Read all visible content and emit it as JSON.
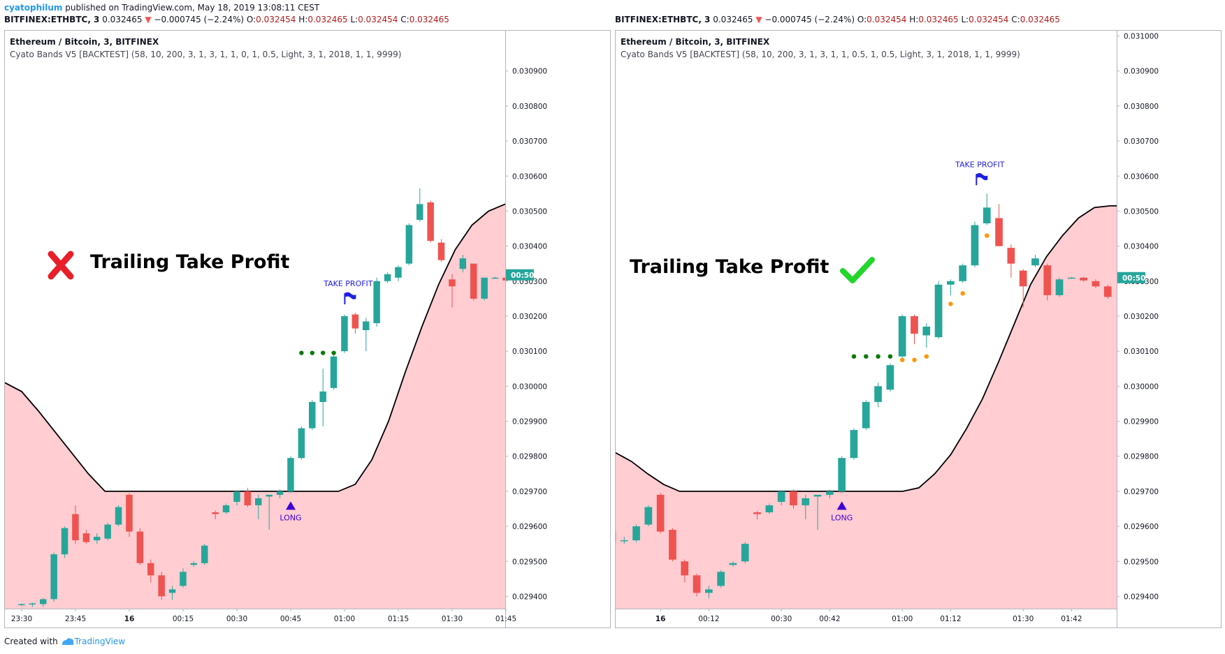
{
  "header": {
    "author": "cyatophilum",
    "published_text": "published on TradingView.com, May 18, 2019 13:08:11 CEST"
  },
  "symbol_line": {
    "symbol": "BITFINEX:ETHBTC, 3",
    "price": "0.032465",
    "change_arrow": "▼",
    "change": "−0.000745 (−2.24%)",
    "o_label": "O:",
    "o": "0.032454",
    "h_label": "H:",
    "h": "0.032465",
    "l_label": "L:",
    "l": "0.032454",
    "c_label": "C:",
    "c": "0.032465"
  },
  "footer": {
    "created_with": "Created with",
    "brand": "TradingView"
  },
  "colors": {
    "up": "#26a69a",
    "down": "#ef5350",
    "band_fill": "#ffcdd2",
    "band_line": "#000000",
    "long_marker": "#3f00d6",
    "take_profit": "#1e1ee6",
    "entry_dots": "#0a7a0a",
    "trail_dots": "#ff9800",
    "cross_icon": "#e8202a",
    "check_icon": "#22d62a"
  },
  "chart_data": [
    {
      "type": "candlestick",
      "title": "Ethereum / Bitcoin, 3, BITFINEX",
      "indicator": "Cyato Bands V5 [BACKTEST] (58, 10, 200, 3, 1, 3, 1, 1, 0, 1, 0.5, Light, 3, 1, 2018, 1, 1, 9999)",
      "annotation": "Trailing Take Profit",
      "annotation_icon": "cross-icon",
      "ylim": [
        0.029365,
        0.031015
      ],
      "yticks": [
        "0.029400",
        "0.029500",
        "0.029600",
        "0.029700",
        "0.029800",
        "0.029900",
        "0.030000",
        "0.030100",
        "0.030200",
        "0.030300",
        "0.030400",
        "0.030500",
        "0.030600",
        "0.030700",
        "0.030800",
        "0.030900"
      ],
      "xticks": [
        "23:30",
        "23:45",
        "16",
        "00:15",
        "00:30",
        "00:45",
        "01:00",
        "01:15",
        "01:30",
        "01:45"
      ],
      "xtick_idx": [
        0,
        5,
        10,
        15,
        20,
        25,
        30,
        35,
        40,
        45
      ],
      "countdown": "00:50",
      "countdown_price": 0.030318,
      "candles": [
        [
          0.029375,
          0.02938,
          0.029372,
          0.029378
        ],
        [
          0.029377,
          0.029382,
          0.02937,
          0.02938
        ],
        [
          0.029378,
          0.029395,
          0.02937,
          0.029392
        ],
        [
          0.029392,
          0.029525,
          0.029385,
          0.02952
        ],
        [
          0.02952,
          0.0296,
          0.02951,
          0.029595
        ],
        [
          0.029635,
          0.02966,
          0.02955,
          0.02956
        ],
        [
          0.02958,
          0.02959,
          0.02955,
          0.029555
        ],
        [
          0.02956,
          0.02958,
          0.02955,
          0.02957
        ],
        [
          0.029565,
          0.02961,
          0.02956,
          0.029605
        ],
        [
          0.029605,
          0.02966,
          0.0296,
          0.029655
        ],
        [
          0.02969,
          0.029695,
          0.02957,
          0.029585
        ],
        [
          0.029585,
          0.029595,
          0.02949,
          0.029495
        ],
        [
          0.029495,
          0.029505,
          0.02944,
          0.02946
        ],
        [
          0.02946,
          0.02947,
          0.02939,
          0.0294
        ],
        [
          0.02941,
          0.02943,
          0.02939,
          0.02942
        ],
        [
          0.02943,
          0.02948,
          0.029425,
          0.02947
        ],
        [
          0.02949,
          0.0295,
          0.029485,
          0.029495
        ],
        [
          0.029495,
          0.02955,
          0.02949,
          0.029545
        ],
        [
          0.02964,
          0.029645,
          0.02962,
          0.029635
        ],
        [
          0.02964,
          0.029665,
          0.029635,
          0.02966
        ],
        [
          0.02967,
          0.0297,
          0.02966,
          0.0297
        ],
        [
          0.0297,
          0.02971,
          0.029655,
          0.02966
        ],
        [
          0.02966,
          0.02969,
          0.02962,
          0.02968
        ],
        [
          0.029685,
          0.02969,
          0.02959,
          0.02969
        ],
        [
          0.02969,
          0.029705,
          0.02968,
          0.0297
        ],
        [
          0.0297,
          0.0298,
          0.029695,
          0.029795
        ],
        [
          0.029795,
          0.029885,
          0.02979,
          0.02988
        ],
        [
          0.02988,
          0.02996,
          0.029875,
          0.029955
        ],
        [
          0.029955,
          0.03005,
          0.029885,
          0.029985
        ],
        [
          0.029995,
          0.03009,
          0.02999,
          0.030085
        ],
        [
          0.0301,
          0.030205,
          0.030095,
          0.0302
        ],
        [
          0.030205,
          0.03021,
          0.03015,
          0.030165
        ],
        [
          0.03016,
          0.030195,
          0.0301,
          0.030185
        ],
        [
          0.03018,
          0.03031,
          0.03017,
          0.0303
        ],
        [
          0.0303,
          0.030325,
          0.030295,
          0.03032
        ],
        [
          0.03031,
          0.030345,
          0.0303,
          0.03034
        ],
        [
          0.03035,
          0.030465,
          0.030345,
          0.03046
        ],
        [
          0.030475,
          0.030565,
          0.03047,
          0.03052
        ],
        [
          0.030525,
          0.03053,
          0.03041,
          0.030415
        ],
        [
          0.03041,
          0.03042,
          0.030355,
          0.03036
        ],
        [
          0.030305,
          0.03032,
          0.030225,
          0.030285
        ],
        [
          0.030335,
          0.030375,
          0.030325,
          0.030365
        ],
        [
          0.03035,
          0.03035,
          0.030245,
          0.03025
        ],
        [
          0.03025,
          0.03031,
          0.030245,
          0.03031
        ],
        [
          0.03031,
          0.030312,
          0.030308,
          0.03031
        ],
        [
          0.03031,
          0.030312,
          0.0303,
          0.030302
        ],
        [
          0.0303,
          0.030305,
          0.030285,
          0.030288
        ],
        [
          0.030285,
          0.03029,
          0.03025,
          0.03025
        ],
        [
          0.03025,
          0.030415,
          0.03022,
          0.030325
        ]
      ],
      "band": [
        0.03001,
        0.029985,
        0.02993,
        0.02987,
        0.02981,
        0.02975,
        0.0297,
        0.0297,
        0.0297,
        0.0297,
        0.0297,
        0.0297,
        0.0297,
        0.0297,
        0.0297,
        0.0297,
        0.0297,
        0.0297,
        0.0297,
        0.0297,
        0.0297,
        0.02972,
        0.02979,
        0.0299,
        0.03004,
        0.03017,
        0.03029,
        0.03039,
        0.03046,
        0.0305,
        0.03052,
        0.03052
      ],
      "band_first_idx": 0,
      "band_step": 1.55,
      "long_idx": 25,
      "long_label": "LONG",
      "take_profit_idx": 31,
      "take_profit_label": "TAKE PROFIT",
      "green_dots": [
        [
          26,
          0.030095
        ],
        [
          27,
          0.030095
        ],
        [
          28,
          0.030095
        ],
        [
          29,
          0.030095
        ]
      ],
      "orange_dots": []
    },
    {
      "type": "candlestick",
      "title": "Ethereum / Bitcoin, 3, BITFINEX",
      "indicator": "Cyato Bands V5 [BACKTEST] (58, 10, 200, 3, 1, 3, 1, 1, 0.5, 1, 0.5, Light, 3, 1, 2018, 1, 1, 9999)",
      "annotation": "Trailing Take Profit",
      "annotation_icon": "check-icon",
      "ylim": [
        0.029365,
        0.031015
      ],
      "yticks": [
        "0.029400",
        "0.029500",
        "0.029600",
        "0.029700",
        "0.029800",
        "0.029900",
        "0.030000",
        "0.030100",
        "0.030200",
        "0.030300",
        "0.030400",
        "0.030500",
        "0.030600",
        "0.030700",
        "0.030800",
        "0.030900",
        "0.031000"
      ],
      "xticks": [
        "16",
        "00:12",
        "00:30",
        "00:42",
        "01:00",
        "01:12",
        "01:30",
        "01:42"
      ],
      "xtick_idx": [
        4,
        8,
        14,
        18,
        24,
        28,
        34,
        38
      ],
      "countdown": "00:50",
      "countdown_price": 0.03031,
      "candles": [
        [
          0.029585,
          0.02959,
          0.02955,
          0.029555
        ],
        [
          0.02956,
          0.02957,
          0.02955,
          0.02956
        ],
        [
          0.02956,
          0.029605,
          0.029555,
          0.0296
        ],
        [
          0.029605,
          0.02966,
          0.0296,
          0.029655
        ],
        [
          0.02969,
          0.029695,
          0.02958,
          0.029585
        ],
        [
          0.02959,
          0.029595,
          0.0295,
          0.029505
        ],
        [
          0.0295,
          0.029505,
          0.02944,
          0.02946
        ],
        [
          0.02946,
          0.029465,
          0.0294,
          0.02941
        ],
        [
          0.02941,
          0.02943,
          0.029395,
          0.02942
        ],
        [
          0.02943,
          0.029475,
          0.029425,
          0.02947
        ],
        [
          0.02949,
          0.0295,
          0.029485,
          0.029495
        ],
        [
          0.0295,
          0.029555,
          0.029495,
          0.02955
        ],
        [
          0.02964,
          0.029645,
          0.02962,
          0.029635
        ],
        [
          0.02964,
          0.029665,
          0.029635,
          0.02966
        ],
        [
          0.02967,
          0.0297,
          0.02966,
          0.0297
        ],
        [
          0.0297,
          0.029705,
          0.02965,
          0.02966
        ],
        [
          0.02966,
          0.02969,
          0.02962,
          0.02968
        ],
        [
          0.029685,
          0.02969,
          0.02959,
          0.02969
        ],
        [
          0.02969,
          0.029705,
          0.02968,
          0.0297
        ],
        [
          0.0297,
          0.0298,
          0.029695,
          0.029795
        ],
        [
          0.029795,
          0.02988,
          0.02979,
          0.029875
        ],
        [
          0.02988,
          0.02996,
          0.029875,
          0.029955
        ],
        [
          0.029955,
          0.03001,
          0.02994,
          0.03
        ],
        [
          0.02999,
          0.030065,
          0.029985,
          0.03006
        ],
        [
          0.030085,
          0.030205,
          0.03008,
          0.0302
        ],
        [
          0.0302,
          0.030205,
          0.03012,
          0.03015
        ],
        [
          0.030145,
          0.03018,
          0.03011,
          0.03017
        ],
        [
          0.03014,
          0.0303,
          0.030135,
          0.03029
        ],
        [
          0.03029,
          0.030305,
          0.03026,
          0.0303
        ],
        [
          0.0303,
          0.03035,
          0.030295,
          0.030345
        ],
        [
          0.030345,
          0.03047,
          0.03034,
          0.03046
        ],
        [
          0.030465,
          0.03055,
          0.03046,
          0.03051
        ],
        [
          0.03048,
          0.03052,
          0.0304,
          0.0304
        ],
        [
          0.030395,
          0.030405,
          0.03031,
          0.03035
        ],
        [
          0.03033,
          0.030335,
          0.030225,
          0.030285
        ],
        [
          0.030345,
          0.030375,
          0.03034,
          0.030365
        ],
        [
          0.030345,
          0.03035,
          0.030245,
          0.03026
        ],
        [
          0.03026,
          0.03031,
          0.030255,
          0.030305
        ],
        [
          0.03031,
          0.030312,
          0.030308,
          0.03031
        ],
        [
          0.03031,
          0.030312,
          0.030298,
          0.030302
        ],
        [
          0.0303,
          0.030305,
          0.03028,
          0.030285
        ],
        [
          0.030285,
          0.03029,
          0.03025,
          0.030255
        ],
        [
          0.03025,
          0.03032,
          0.03024,
          0.03031
        ]
      ],
      "band": [
        0.02981,
        0.029785,
        0.02975,
        0.02972,
        0.0297,
        0.0297,
        0.0297,
        0.0297,
        0.0297,
        0.0297,
        0.0297,
        0.0297,
        0.0297,
        0.0297,
        0.0297,
        0.0297,
        0.0297,
        0.0297,
        0.0297,
        0.02971,
        0.02975,
        0.029805,
        0.02988,
        0.029965,
        0.03007,
        0.03018,
        0.03029,
        0.03037,
        0.03043,
        0.03048,
        0.03051,
        0.030515,
        0.030515
      ],
      "band_first_idx": 0,
      "band_step": 1.32,
      "long_idx": 19,
      "long_label": "LONG",
      "take_profit_idx": 31,
      "take_profit_label": "TAKE PROFIT",
      "green_dots": [
        [
          20,
          0.030085
        ],
        [
          21,
          0.030085
        ],
        [
          22,
          0.030085
        ],
        [
          23,
          0.030085
        ]
      ],
      "orange_dots": [
        [
          24,
          0.030075
        ],
        [
          25,
          0.030075
        ],
        [
          26,
          0.030085
        ],
        [
          28,
          0.030235
        ],
        [
          29,
          0.030265
        ],
        [
          31,
          0.03043
        ]
      ]
    }
  ]
}
